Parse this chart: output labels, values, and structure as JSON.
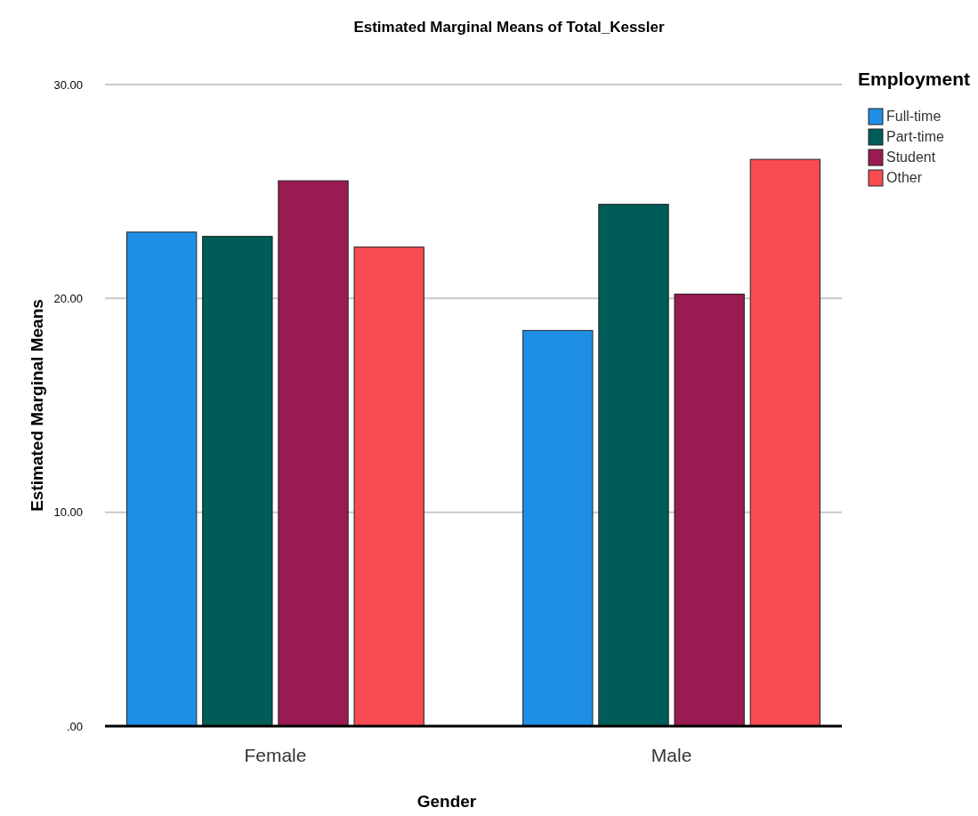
{
  "chart_data": {
    "type": "bar",
    "title": "Estimated Marginal Means of Total_Kessler",
    "xlabel": "Gender",
    "ylabel": "Estimated Marginal Means",
    "legend_title": "Employment",
    "categories": [
      "Female",
      "Male"
    ],
    "series": [
      {
        "name": "Full-time",
        "color": "#1f8fe5",
        "values": [
          23.1,
          18.5
        ]
      },
      {
        "name": "Part-time",
        "color": "#005c58",
        "values": [
          22.9,
          24.4
        ]
      },
      {
        "name": "Student",
        "color": "#9a1a52",
        "values": [
          25.5,
          20.2
        ]
      },
      {
        "name": "Other",
        "color": "#f84c52",
        "values": [
          22.4,
          26.5
        ]
      }
    ],
    "ylim": [
      0,
      30
    ],
    "yticks": [
      {
        "value": 0,
        "label": ".00"
      },
      {
        "value": 10,
        "label": "10.00"
      },
      {
        "value": 20,
        "label": "20.00"
      },
      {
        "value": 30,
        "label": "30.00"
      }
    ],
    "grid": "y",
    "legend": "top right"
  }
}
